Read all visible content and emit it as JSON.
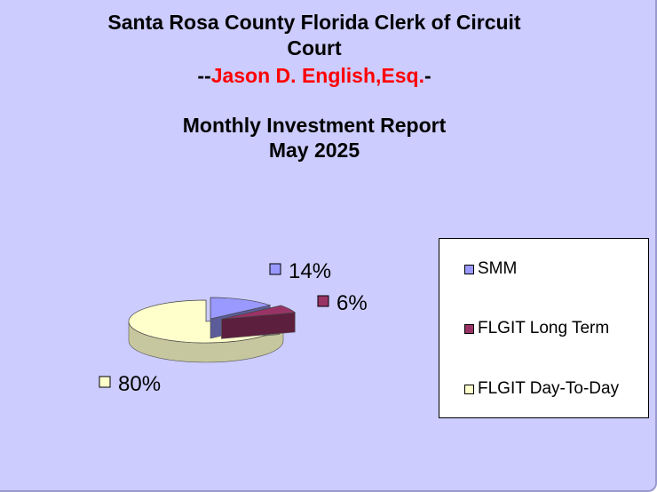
{
  "header": {
    "title_line1": "Santa Rosa County Florida Clerk of Circuit",
    "title_line2": "Court",
    "clerk_prefix": "--",
    "clerk_name": "Jason D. English,Esq.",
    "clerk_suffix": "-",
    "report_title": "Monthly Investment Report",
    "report_period": "May 2025"
  },
  "colors": {
    "background": "#ccccff",
    "red_text": "#ff0000"
  },
  "chart_data": {
    "type": "pie",
    "style": "3d-exploded",
    "categories": [
      "SMM",
      "FLGIT Long Term",
      "FLGIT Day-To-Day"
    ],
    "values": [
      14,
      6,
      80
    ],
    "data_labels": [
      "14%",
      "6%",
      "80%"
    ],
    "colors": [
      "#9999ff",
      "#993366",
      "#ffffcc"
    ],
    "legend_position": "right"
  }
}
